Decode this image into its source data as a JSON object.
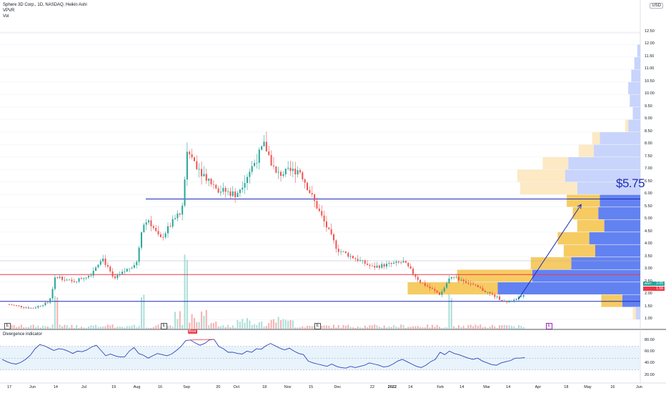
{
  "legend": {
    "title": "Sphere 3D Corp., 1D, NASDAQ, Heikin Ashi",
    "line2": "VPVR",
    "line3": "Vol"
  },
  "currency": "USD",
  "indicator_title": "Divergence indicator",
  "annotation_price": "$5.75",
  "bear_label": "Bear",
  "earnings_badges": [
    "E",
    "E",
    "E",
    "E"
  ],
  "purple_badge": "E",
  "price_tags": {
    "ticker": "ANY",
    "last": "2.05",
    "level": "1.56"
  },
  "colors": {
    "up": "#26a69a",
    "down": "#ef5350",
    "blue_line": "#1e2bb8",
    "red_line": "#f23645",
    "vp_blue": "#5b7bf0",
    "vp_yellow": "#f5c85a"
  },
  "chart_data": [
    {
      "type": "candlestick",
      "title": "Sphere 3D Corp., 1D, NASDAQ, Heikin Ashi",
      "x_tick_labels": [
        "17",
        "Jun",
        "14",
        "Jul",
        "19",
        "Aug",
        "16",
        "Sep",
        "20",
        "Oct",
        "18",
        "Nov",
        "15",
        "Dec",
        "22",
        "2022",
        "14",
        "Feb",
        "14",
        "Mar",
        "14",
        "Apr",
        "18",
        "May",
        "16",
        "Jun"
      ],
      "y_tick_labels": [
        "1.00",
        "1.50",
        "2.00",
        "2.50",
        "3.00",
        "3.50",
        "4.00",
        "4.50",
        "5.00",
        "5.50",
        "6.00",
        "6.50",
        "7.00",
        "7.50",
        "8.00",
        "8.50",
        "9.00",
        "9.50",
        "10.00",
        "10.50",
        "11.00",
        "11.50",
        "12.00",
        "12.50"
      ],
      "ylim": [
        0.75,
        12.75
      ],
      "horizontal_lines": [
        {
          "value": 5.82,
          "color": "blue"
        },
        {
          "value": 2.8,
          "color": "red"
        },
        {
          "value": 1.73,
          "color": "blue"
        },
        {
          "value": 3.35,
          "color": "gray"
        }
      ],
      "projection_arrow": {
        "from_date": "2022-03-20",
        "from_value": 1.8,
        "to_date": "2022-04-27",
        "to_value": 5.6
      },
      "price_path": [
        {
          "date": "2021-05-17",
          "value": 1.6
        },
        {
          "date": "2021-05-31",
          "value": 1.45
        },
        {
          "date": "2021-06-10",
          "value": 1.7
        },
        {
          "date": "2021-06-14",
          "value": 2.75
        },
        {
          "date": "2021-06-24",
          "value": 2.5
        },
        {
          "date": "2021-07-05",
          "value": 2.8
        },
        {
          "date": "2021-07-12",
          "value": 3.5
        },
        {
          "date": "2021-07-19",
          "value": 2.6
        },
        {
          "date": "2021-08-02",
          "value": 3.3
        },
        {
          "date": "2021-08-05",
          "value": 4.7
        },
        {
          "date": "2021-08-09",
          "value": 5.0
        },
        {
          "date": "2021-08-16",
          "value": 4.2
        },
        {
          "date": "2021-08-30",
          "value": 5.5
        },
        {
          "date": "2021-09-01",
          "value": 7.8
        },
        {
          "date": "2021-09-10",
          "value": 6.9
        },
        {
          "date": "2021-09-20",
          "value": 6.2
        },
        {
          "date": "2021-10-01",
          "value": 6.0
        },
        {
          "date": "2021-10-18",
          "value": 8.0
        },
        {
          "date": "2021-10-25",
          "value": 6.8
        },
        {
          "date": "2021-11-08",
          "value": 7.0
        },
        {
          "date": "2021-11-15",
          "value": 6.0
        },
        {
          "date": "2021-12-01",
          "value": 3.8
        },
        {
          "date": "2021-12-22",
          "value": 3.1
        },
        {
          "date": "2022-01-10",
          "value": 3.3
        },
        {
          "date": "2022-01-20",
          "value": 2.5
        },
        {
          "date": "2022-02-01",
          "value": 2.0
        },
        {
          "date": "2022-02-07",
          "value": 2.7
        },
        {
          "date": "2022-02-14",
          "value": 2.6
        },
        {
          "date": "2022-03-01",
          "value": 2.1
        },
        {
          "date": "2022-03-14",
          "value": 1.65
        },
        {
          "date": "2022-03-24",
          "value": 2.05
        }
      ],
      "volume_profile_rows": [
        {
          "price": 1.25,
          "blue": 0.03,
          "yellow": 0.02
        },
        {
          "price": 1.75,
          "blue": 0.12,
          "yellow": 0.14
        },
        {
          "price": 2.25,
          "blue": 0.95,
          "yellow": 0.6
        },
        {
          "price": 2.75,
          "blue": 0.72,
          "yellow": 0.5
        },
        {
          "price": 3.25,
          "blue": 0.46,
          "yellow": 0.27
        },
        {
          "price": 3.75,
          "blue": 0.3,
          "yellow": 0.21
        },
        {
          "price": 4.25,
          "blue": 0.34,
          "yellow": 0.21
        },
        {
          "price": 4.75,
          "blue": 0.24,
          "yellow": 0.18
        },
        {
          "price": 5.25,
          "blue": 0.28,
          "yellow": 0.17
        },
        {
          "price": 5.75,
          "blue": 0.27,
          "yellow": 0.22
        },
        {
          "price": 6.25,
          "blue": 0.42,
          "yellow": 0.38
        },
        {
          "price": 6.75,
          "blue": 0.5,
          "yellow": 0.32
        },
        {
          "price": 7.25,
          "blue": 0.48,
          "yellow": 0.17
        },
        {
          "price": 7.75,
          "blue": 0.31,
          "yellow": 0.1
        },
        {
          "price": 8.25,
          "blue": 0.27,
          "yellow": 0.05
        },
        {
          "price": 8.75,
          "blue": 0.08,
          "yellow": 0.02
        },
        {
          "price": 9.25,
          "blue": 0.05,
          "yellow": 0.0
        },
        {
          "price": 9.75,
          "blue": 0.07,
          "yellow": 0.0
        },
        {
          "price": 10.25,
          "blue": 0.08,
          "yellow": 0.0
        },
        {
          "price": 10.75,
          "blue": 0.06,
          "yellow": 0.0
        },
        {
          "price": 11.25,
          "blue": 0.04,
          "yellow": 0.0
        },
        {
          "price": 11.75,
          "blue": 0.02,
          "yellow": 0.0
        }
      ]
    },
    {
      "type": "line",
      "title": "Divergence indicator",
      "y_tick_labels": [
        "20.00",
        "40.00",
        "60.00",
        "80.00"
      ],
      "ylim": [
        15,
        88
      ],
      "band": [
        30,
        70
      ],
      "midline": 50,
      "values": [
        48,
        44,
        41,
        40,
        43,
        48,
        55,
        66,
        73,
        71,
        67,
        63,
        66,
        65,
        62,
        58,
        62,
        61,
        64,
        69,
        72,
        63,
        54,
        57,
        54,
        52,
        52,
        62,
        68,
        58,
        55,
        50,
        54,
        58,
        56,
        54,
        57,
        63,
        70,
        80,
        81,
        76,
        72,
        75,
        81,
        82,
        70,
        66,
        60,
        60,
        58,
        57,
        62,
        60,
        66,
        65,
        71,
        75,
        71,
        67,
        64,
        67,
        62,
        58,
        56,
        45,
        42,
        40,
        38,
        36,
        40,
        36,
        34,
        33,
        36,
        34,
        36,
        38,
        42,
        40,
        38,
        35,
        36,
        40,
        45,
        48,
        44,
        40,
        36,
        34,
        38,
        44,
        48,
        60,
        56,
        62,
        58,
        56,
        53,
        50,
        48,
        50,
        45,
        42,
        39,
        38,
        42,
        44,
        46,
        50,
        50,
        51
      ]
    }
  ]
}
